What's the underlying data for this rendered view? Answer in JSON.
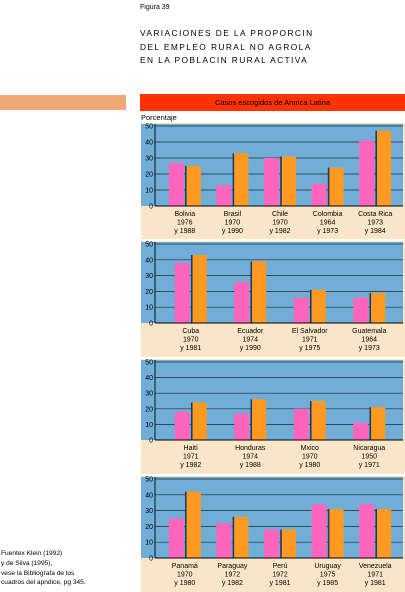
{
  "figure_label": "Figura 39",
  "title_lines": [
    "VARIACIONES DE LA PROPORCIN",
    "DEL EMPLEO RURAL NO AGROLA",
    "EN LA POBLACIN RURAL ACTIVA"
  ],
  "banner": "Casos escogidos de Amrica Latina",
  "y_axis_label": "Porcentaje",
  "source_lines": [
    "Fuentex Klein (1992)",
    "y de Silva (1995),",
    "vese la Bibliografa de los",
    "cuadros del apndice, pg 345."
  ],
  "colors": {
    "bar_first": "#ff66bb",
    "bar_second": "#ff9922",
    "plot_bg": "#70aed8",
    "label_bg": "#fbe5c8",
    "banner": "#ff3300",
    "accent": "#f0a878"
  },
  "chart_data": [
    {
      "type": "bar",
      "ylim": [
        0,
        50
      ],
      "yticks": [
        0,
        10,
        20,
        30,
        40,
        50
      ],
      "categories": [
        {
          "name": "Bolivia",
          "years": [
            "1976",
            "y 1988"
          ],
          "values": [
            27,
            25
          ]
        },
        {
          "name": "Brasil",
          "years": [
            "1970",
            "y 1990"
          ],
          "values": [
            13,
            33
          ]
        },
        {
          "name": "Chile",
          "years": [
            "1970",
            "y 1982"
          ],
          "values": [
            30,
            31
          ]
        },
        {
          "name": "Colombia",
          "years": [
            "1964",
            "y 1973"
          ],
          "values": [
            14,
            24
          ]
        },
        {
          "name": "Costa Rica",
          "years": [
            "1973",
            "y 1984"
          ],
          "values": [
            41,
            47
          ]
        }
      ]
    },
    {
      "type": "bar",
      "ylim": [
        0,
        50
      ],
      "yticks": [
        0,
        10,
        20,
        30,
        40,
        50
      ],
      "categories": [
        {
          "name": "Cuba",
          "years": [
            "1970",
            "y 1981"
          ],
          "values": [
            38,
            43
          ]
        },
        {
          "name": "Ecuador",
          "years": [
            "1974",
            "y 1990"
          ],
          "values": [
            26,
            39
          ]
        },
        {
          "name": "El Salvador",
          "years": [
            "1971",
            "y 1975"
          ],
          "values": [
            16,
            21
          ]
        },
        {
          "name": "Guatemala",
          "years": [
            "1964",
            "y 1973"
          ],
          "values": [
            16,
            19
          ]
        }
      ]
    },
    {
      "type": "bar",
      "ylim": [
        0,
        50
      ],
      "yticks": [
        0,
        10,
        20,
        30,
        40,
        50
      ],
      "categories": [
        {
          "name": "Haití",
          "years": [
            "1971",
            "y 1982"
          ],
          "values": [
            18,
            24
          ]
        },
        {
          "name": "Honduras",
          "years": [
            "1974",
            "y 1988"
          ],
          "values": [
            17,
            26
          ]
        },
        {
          "name": "Mxico",
          "years": [
            "1970",
            "y 1980"
          ],
          "values": [
            20,
            25
          ]
        },
        {
          "name": "Nicaragua",
          "years": [
            "1950",
            "y 1971"
          ],
          "values": [
            11,
            21
          ]
        }
      ]
    },
    {
      "type": "bar",
      "ylim": [
        0,
        50
      ],
      "yticks": [
        0,
        10,
        20,
        30,
        40,
        50
      ],
      "categories": [
        {
          "name": "Panamá",
          "years": [
            "1970",
            "y 1980"
          ],
          "values": [
            25,
            42
          ]
        },
        {
          "name": "Paraguay",
          "years": [
            "1972",
            "y 1982"
          ],
          "values": [
            22,
            26
          ]
        },
        {
          "name": "Perú",
          "years": [
            "1972",
            "y 1981"
          ],
          "values": [
            18,
            18
          ]
        },
        {
          "name": "Uruguay",
          "years": [
            "1975",
            "y 1985"
          ],
          "values": [
            34,
            31
          ]
        },
        {
          "name": "Venezuela",
          "years": [
            "1971",
            "y 1981"
          ],
          "values": [
            34,
            31
          ]
        }
      ]
    }
  ]
}
